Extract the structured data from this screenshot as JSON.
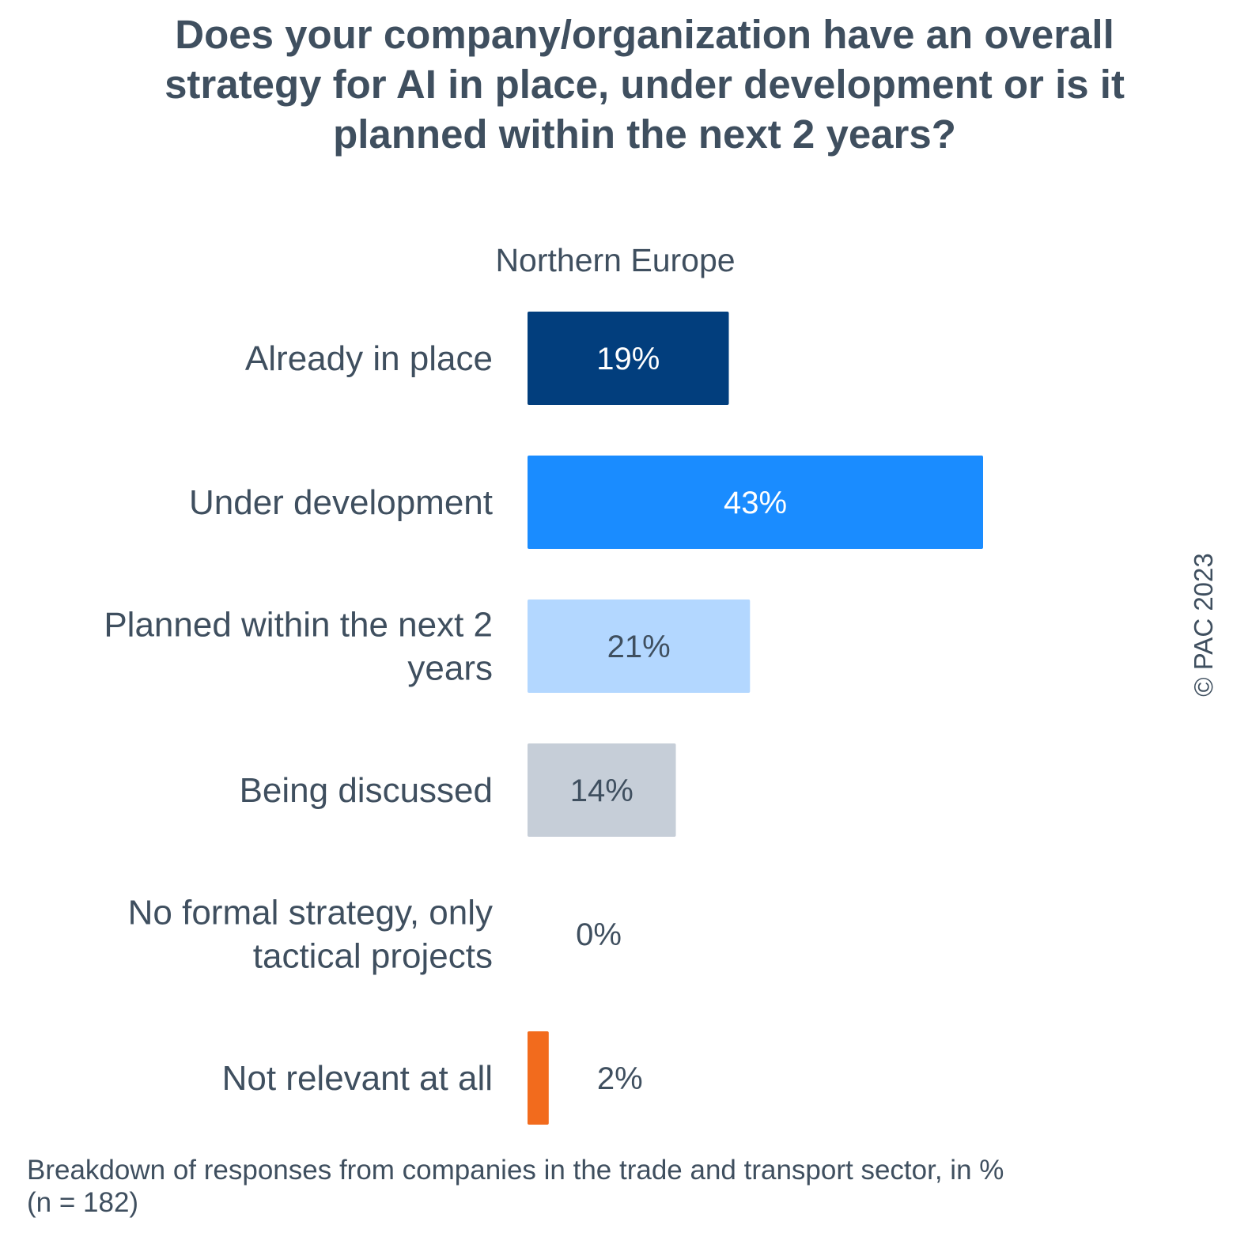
{
  "chart_data": {
    "type": "bar",
    "orientation": "horizontal",
    "title": "Does your company/organization have an overall strategy for AI in place, under development or is it planned within the next 2 years?",
    "subtitle": "Northern Europe",
    "categories": [
      "Already in place",
      "Under development",
      "Planned within the next 2 years",
      "Being discussed",
      "No formal strategy, only tactical projects",
      "Not relevant at all"
    ],
    "category_label_lines": [
      [
        "Already in place"
      ],
      [
        "Under development"
      ],
      [
        "Planned within the next 2",
        "years"
      ],
      [
        "Being discussed"
      ],
      [
        "No formal strategy, only",
        "tactical projects"
      ],
      [
        "Not relevant at all"
      ]
    ],
    "values": [
      19,
      43,
      21,
      14,
      0,
      2
    ],
    "data_labels": [
      "19%",
      "43%",
      "21%",
      "14%",
      "0%",
      "2%"
    ],
    "colors": [
      "#023e7d",
      "#1a8cff",
      "#b3d7ff",
      "#c6ced8",
      "#c6ced8",
      "#f26b1d"
    ],
    "label_colors": [
      "#ffffff",
      "#ffffff",
      "#3f4f5f",
      "#3f4f5f",
      "#3f4f5f",
      "#3f4f5f"
    ],
    "xlabel": "",
    "ylabel": "",
    "xlim": [
      0,
      43
    ],
    "grid": false,
    "legend": "none",
    "unit": "%"
  },
  "copyright": "© PAC 2023",
  "footnote": {
    "line1": "Breakdown of responses from companies in the trade and transport sector, in %",
    "line2": "(n = 182)"
  }
}
